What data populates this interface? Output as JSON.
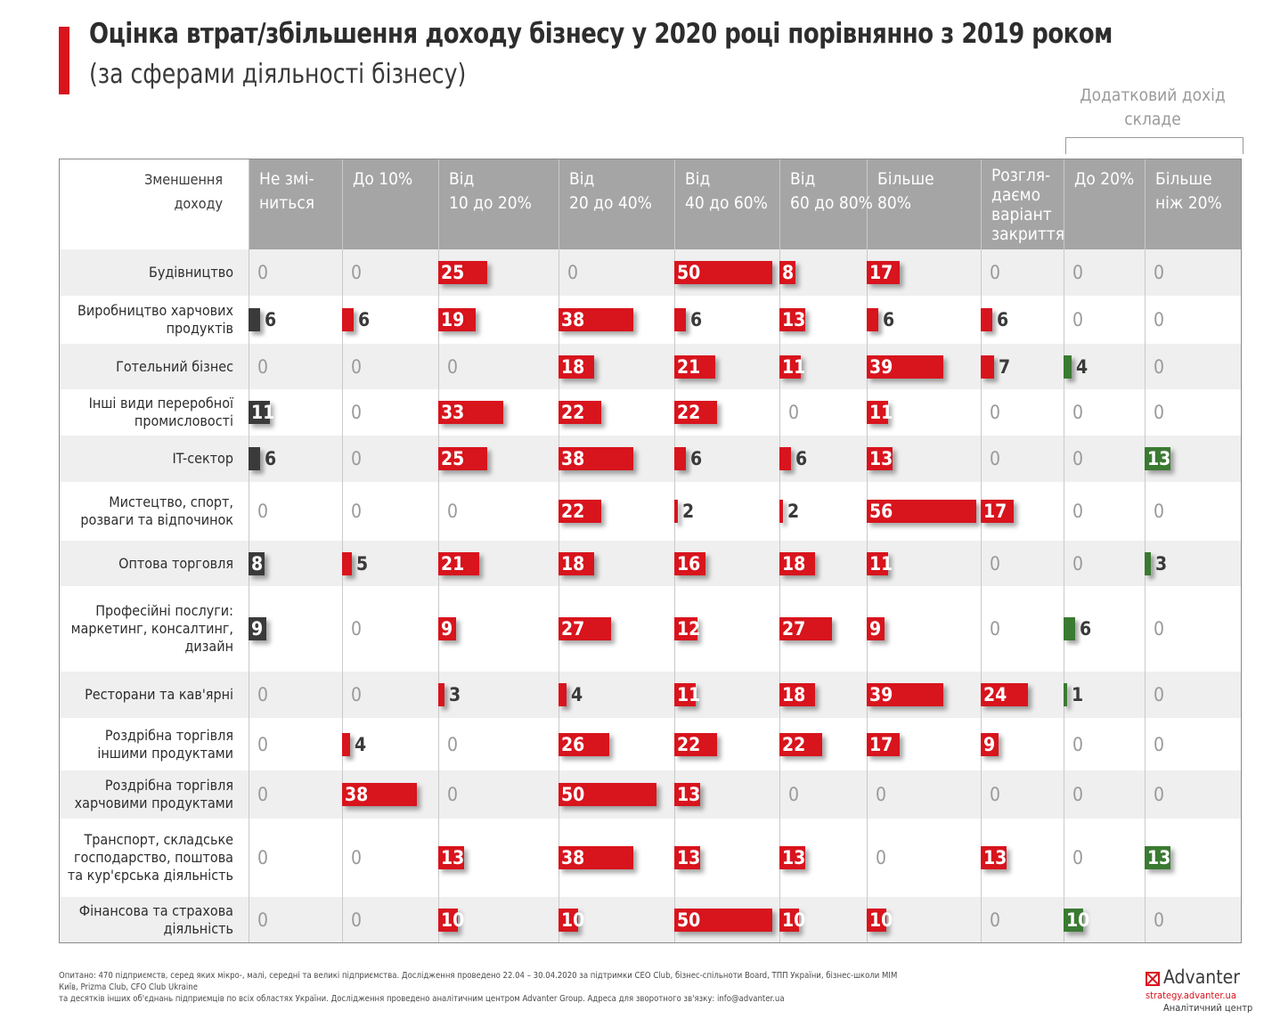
{
  "header": {
    "title": "Оцінка втрат/збільшення доходу бізнесу у 2020 році порівнянно з 2019 роком",
    "subtitle": "(за сферами діяльності бізнесу)",
    "extra_group_label": "Додатковий дохід складе"
  },
  "chart_data": {
    "type": "table",
    "title": "Оцінка втрат/збільшення доходу бізнесу у 2020 році порівнянно з 2019 роком",
    "subtitle": "(за сферами діяльності бізнесу)",
    "corner_label": "Зменшення доходу",
    "group_label": "Додатковий дохід складе",
    "columns": [
      "Не змі- ниться",
      "До 10%",
      "Від 10 до 20%",
      "Від 20 до 40%",
      "Від 40 до 60%",
      "Від 60 до 80%",
      "Більше 80%",
      "Розгля- даємо варіант закриття",
      "До 20%",
      "Більше ніж 20%"
    ],
    "column_colors": [
      "#3a3a3a",
      "#d8141d",
      "#d8141d",
      "#d8141d",
      "#d8141d",
      "#d8141d",
      "#d8141d",
      "#d8141d",
      "#3a7a32",
      "#3a7a32"
    ],
    "rows": [
      {
        "label": "Будівництво",
        "values": [
          0,
          0,
          25,
          0,
          50,
          8,
          17,
          0,
          0,
          0
        ]
      },
      {
        "label": "Виробництво харчових продуктів",
        "values": [
          6,
          6,
          19,
          38,
          6,
          13,
          6,
          6,
          0,
          0
        ]
      },
      {
        "label": "Готельний бізнес",
        "values": [
          0,
          0,
          0,
          18,
          21,
          11,
          39,
          7,
          4,
          0
        ]
      },
      {
        "label": "Інші види переробної промисловості",
        "values": [
          11,
          0,
          33,
          22,
          22,
          0,
          11,
          0,
          0,
          0
        ]
      },
      {
        "label": "IT-сектор",
        "values": [
          6,
          0,
          25,
          38,
          6,
          6,
          13,
          0,
          0,
          13
        ]
      },
      {
        "label": "Мистецтво, спорт, розваги та відпочинок",
        "values": [
          0,
          0,
          0,
          22,
          2,
          2,
          56,
          17,
          0,
          0
        ]
      },
      {
        "label": "Оптова торговля",
        "values": [
          8,
          5,
          21,
          18,
          16,
          18,
          11,
          0,
          0,
          3
        ]
      },
      {
        "label": "Професійні послуги: маркетинг, консалтинг, дизайн",
        "values": [
          9,
          0,
          9,
          27,
          12,
          27,
          9,
          0,
          6,
          0
        ]
      },
      {
        "label": "Ресторани та кав'ярні",
        "values": [
          0,
          0,
          3,
          4,
          11,
          18,
          39,
          24,
          1,
          0
        ]
      },
      {
        "label": "Роздрібна торгівля іншими продуктами",
        "values": [
          0,
          4,
          0,
          26,
          22,
          22,
          17,
          9,
          0,
          0
        ]
      },
      {
        "label": "Роздрібна торгівля харчовими продуктами",
        "values": [
          0,
          38,
          0,
          50,
          13,
          0,
          0,
          0,
          0,
          0
        ]
      },
      {
        "label": "Транспорт, складське господарство, поштова та кур'єрська діяльність",
        "values": [
          0,
          0,
          13,
          38,
          13,
          13,
          0,
          13,
          0,
          13
        ]
      },
      {
        "label": "Фінансова та страхова діяльність",
        "values": [
          0,
          0,
          10,
          10,
          50,
          10,
          10,
          0,
          10,
          0
        ]
      }
    ]
  },
  "footer": {
    "note_line1": "Опитано: 470 підприємств, серед яких мікро-, малі, середні та великі підприємства. Дослідження проведено 22.04 – 30.04.2020 за підтримки CEO Club, бізнес-спільноти Board, ТПП України, бізнес-школи МІМ Київ, Prizma Club, CFO Club Ukraine",
    "note_line2": "та десятків інших об'єднань підприємців по всіх областях України. Дослідження проведено аналітичним центром Advanter Group. Адреса для зворотного зв'язку: info@advanter.ua",
    "logo_name": "Advanter",
    "logo_url": "strategy.advanter.ua",
    "logo_sub": "Аналітичний центр"
  }
}
